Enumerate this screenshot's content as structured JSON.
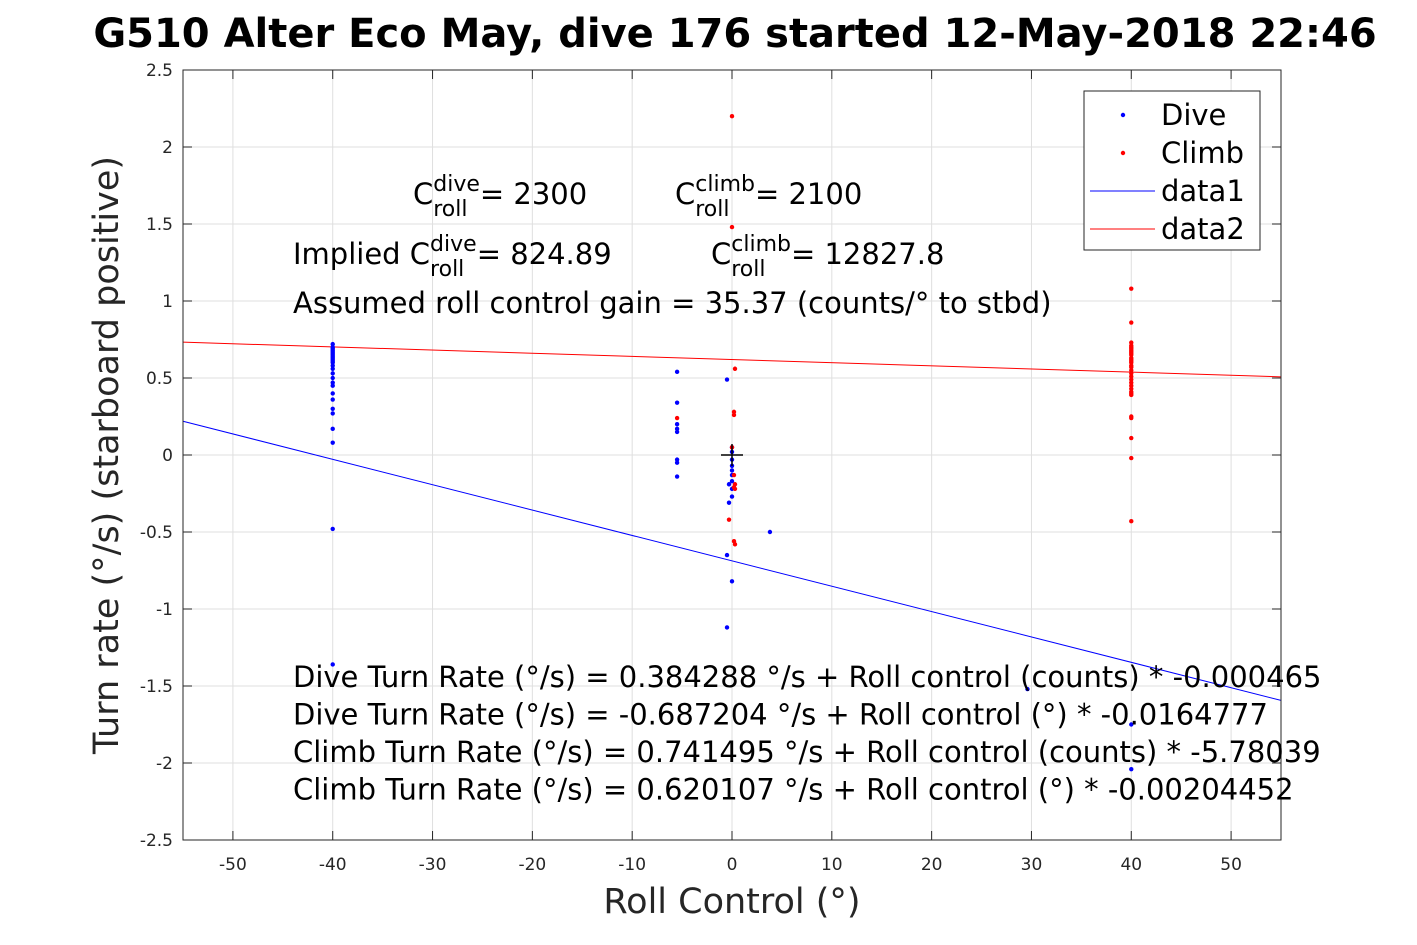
{
  "chart_data": {
    "type": "scatter",
    "title": "G510 Alter Eco May, dive 176 started 12-May-2018 22:46",
    "xlabel": "Roll Control (°)",
    "ylabel": "Turn rate (°/s) (starboard positive)",
    "xlim": [
      -55,
      55
    ],
    "ylim": [
      -2.5,
      2.5
    ],
    "xticks": [
      -50,
      -40,
      -30,
      -20,
      -10,
      0,
      10,
      20,
      30,
      40,
      50
    ],
    "yticks": [
      -2.5,
      -2,
      -1.5,
      -1,
      -0.5,
      0,
      0.5,
      1,
      1.5,
      2,
      2.5
    ],
    "xtick_labels": [
      "-50",
      "-40",
      "-30",
      "-20",
      "-10",
      "0",
      "10",
      "20",
      "30",
      "40",
      "50"
    ],
    "ytick_labels": [
      "-2.5",
      "-2",
      "-1.5",
      "-1",
      "-0.5",
      "0",
      "0.5",
      "1",
      "1.5",
      "2",
      "2.5"
    ],
    "grid": true,
    "legend_position": "top-right",
    "series": [
      {
        "name": "Dive",
        "kind": "points",
        "color": "#0000ff",
        "points": [
          [
            -40,
            0.72
          ],
          [
            -40,
            0.7
          ],
          [
            -40,
            0.69
          ],
          [
            -40,
            0.68
          ],
          [
            -40,
            0.67
          ],
          [
            -40,
            0.66
          ],
          [
            -40,
            0.65
          ],
          [
            -40,
            0.64
          ],
          [
            -40,
            0.63
          ],
          [
            -40,
            0.62
          ],
          [
            -40,
            0.61
          ],
          [
            -40,
            0.6
          ],
          [
            -40,
            0.58
          ],
          [
            -40,
            0.56
          ],
          [
            -40,
            0.53
          ],
          [
            -40,
            0.5
          ],
          [
            -40,
            0.47
          ],
          [
            -40,
            0.45
          ],
          [
            -40,
            0.4
          ],
          [
            -40,
            0.36
          ],
          [
            -40,
            0.3
          ],
          [
            -40,
            0.27
          ],
          [
            -40,
            0.17
          ],
          [
            -40,
            0.08
          ],
          [
            -40,
            -0.48
          ],
          [
            -40,
            -1.36
          ],
          [
            -5.5,
            0.54
          ],
          [
            -5.5,
            0.34
          ],
          [
            -5.5,
            0.2
          ],
          [
            -5.5,
            0.17
          ],
          [
            -5.5,
            0.15
          ],
          [
            -5.5,
            -0.03
          ],
          [
            -5.5,
            -0.05
          ],
          [
            -5.5,
            -0.14
          ],
          [
            -0.5,
            0.49
          ],
          [
            0,
            0.05
          ],
          [
            0,
            0.02
          ],
          [
            0,
            -0.03
          ],
          [
            0,
            -0.07
          ],
          [
            0,
            -0.1
          ],
          [
            0,
            -0.13
          ],
          [
            0,
            -0.17
          ],
          [
            -0.3,
            -0.19
          ],
          [
            0,
            -0.22
          ],
          [
            0,
            -0.27
          ],
          [
            -0.3,
            -0.31
          ],
          [
            -0.5,
            -0.65
          ],
          [
            0,
            -0.82
          ],
          [
            -0.5,
            -1.12
          ],
          [
            3.8,
            -0.5
          ],
          [
            29.6,
            -1.52
          ],
          [
            40,
            -1.75
          ],
          [
            40,
            -2.04
          ]
        ]
      },
      {
        "name": "Climb",
        "kind": "points",
        "color": "#ff0000",
        "points": [
          [
            0,
            2.2
          ],
          [
            0,
            1.48
          ],
          [
            0.3,
            0.56
          ],
          [
            0.2,
            0.28
          ],
          [
            0.2,
            0.26
          ],
          [
            0,
            0.05
          ],
          [
            0.2,
            -0.13
          ],
          [
            0.3,
            -0.19
          ],
          [
            0.2,
            -0.21
          ],
          [
            0.3,
            -0.22
          ],
          [
            -0.3,
            -0.42
          ],
          [
            0.2,
            -0.56
          ],
          [
            0.3,
            -0.58
          ],
          [
            -5.5,
            0.24
          ],
          [
            40,
            1.08
          ],
          [
            40,
            0.86
          ],
          [
            40,
            0.73
          ],
          [
            40,
            0.71
          ],
          [
            40,
            0.7
          ],
          [
            40,
            0.69
          ],
          [
            40,
            0.68
          ],
          [
            40,
            0.67
          ],
          [
            40,
            0.66
          ],
          [
            40,
            0.65
          ],
          [
            40,
            0.63
          ],
          [
            40,
            0.62
          ],
          [
            40,
            0.61
          ],
          [
            40,
            0.6
          ],
          [
            40,
            0.58
          ],
          [
            40,
            0.57
          ],
          [
            40,
            0.55
          ],
          [
            40,
            0.53
          ],
          [
            40,
            0.51
          ],
          [
            40,
            0.49
          ],
          [
            40,
            0.47
          ],
          [
            40,
            0.45
          ],
          [
            40,
            0.43
          ],
          [
            40,
            0.41
          ],
          [
            40,
            0.4
          ],
          [
            40,
            0.39
          ],
          [
            40,
            0.25
          ],
          [
            40,
            0.24
          ],
          [
            40,
            0.11
          ],
          [
            40,
            -0.02
          ],
          [
            40,
            -0.43
          ]
        ]
      },
      {
        "name": "data1",
        "kind": "line",
        "color": "#0000ff",
        "x": [
          -55,
          55
        ],
        "y": [
          0.219065,
          -1.593478
        ]
      },
      {
        "name": "data2",
        "kind": "line",
        "color": "#ff0000",
        "x": [
          -55,
          55
        ],
        "y": [
          0.732556,
          0.507659
        ]
      }
    ],
    "origin_marker": [
      0,
      0
    ],
    "annotations": [
      {
        "main": "C",
        "sup": "dive",
        "sub": "roll",
        "value": " = 2300"
      },
      {
        "main": "C",
        "sup": "climb",
        "sub": "roll",
        "value": " = 2100"
      },
      {
        "main": "Implied C",
        "sup": "dive",
        "sub": "roll",
        "value": " = 824.89"
      },
      {
        "main": "C",
        "sup": "climb",
        "sub": "roll",
        "value": " = 12827.8"
      }
    ],
    "gain_text": "Assumed roll control gain = 35.37 (counts/° to stbd)",
    "equations": [
      "Dive Turn Rate (°/s) = 0.384288 °/s + Roll control (counts) * -0.000465",
      "Dive Turn Rate (°/s) = -0.687204 °/s + Roll control (°) * -0.0164777",
      "Climb Turn Rate (°/s) = 0.741495 °/s + Roll control (counts) * -5.78039",
      "Climb Turn Rate (°/s) = 0.620107 °/s + Roll control (°) * -0.00204452"
    ]
  }
}
